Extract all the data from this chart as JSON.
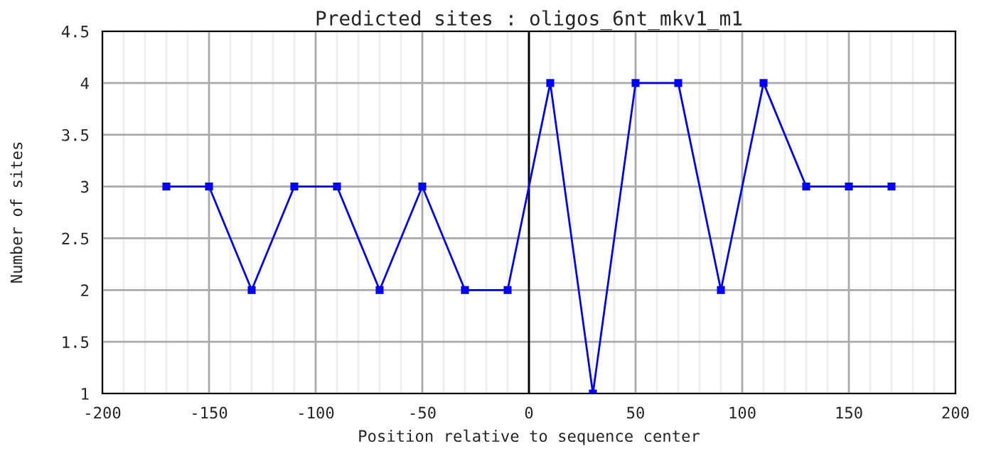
{
  "chart_data": {
    "type": "line",
    "title": "Predicted sites : oligos_6nt_mkv1_m1",
    "xlabel": "Position relative to sequence center",
    "ylabel": "Number of sites",
    "x": [
      -170,
      -150,
      -130,
      -110,
      -90,
      -70,
      -50,
      -30,
      -10,
      10,
      30,
      50,
      70,
      90,
      110,
      130,
      150,
      170
    ],
    "series": [
      {
        "color": "#0000ff",
        "values": [
          3,
          3,
          2,
          3,
          3,
          2,
          3,
          2,
          2,
          4,
          1,
          4,
          4,
          2,
          4,
          3,
          3,
          3
        ]
      }
    ],
    "xlim": [
      -200,
      200
    ],
    "xticks": [
      -200,
      -150,
      -100,
      -50,
      0,
      50,
      100,
      150,
      200
    ],
    "ylim": [
      1,
      4.5
    ],
    "yticks": [
      1,
      1.5,
      2,
      2.5,
      3,
      3.5,
      4,
      4.5
    ],
    "ref_lines": [
      {
        "axis": "x",
        "value": 0,
        "color": "#000000"
      }
    ],
    "grid": true,
    "marker": "square",
    "line_style": "solid",
    "legend": false
  }
}
